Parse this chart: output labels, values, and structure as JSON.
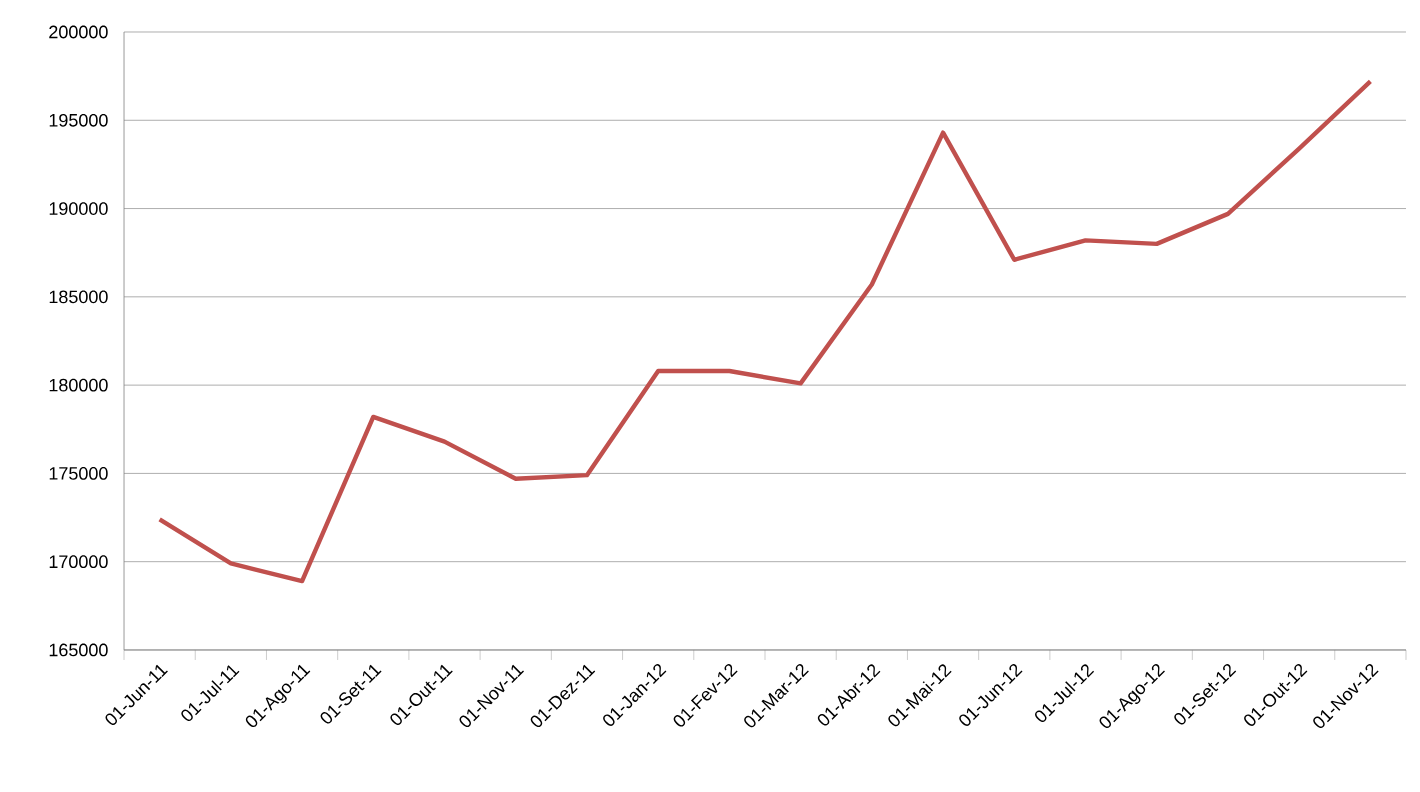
{
  "chart_data": {
    "type": "line",
    "categories": [
      "01-Jun-11",
      "01-Jul-11",
      "01-Ago-11",
      "01-Set-11",
      "01-Out-11",
      "01-Nov-11",
      "01-Dez-11",
      "01-Jan-12",
      "01-Fev-12",
      "01-Mar-12",
      "01-Abr-12",
      "01-Mai-12",
      "01-Jun-12",
      "01-Jul-12",
      "01-Ago-12",
      "01-Set-12",
      "01-Out-12",
      "01-Nov-12"
    ],
    "series": [
      {
        "color": "#c0504d",
        "values": [
          172400,
          169900,
          168900,
          178200,
          176800,
          174700,
          174900,
          180800,
          180800,
          180100,
          185700,
          194300,
          187100,
          188200,
          188000,
          189700,
          193400,
          197200
        ]
      }
    ],
    "ylim": [
      165000,
      200000
    ],
    "yticks": [
      165000,
      170000,
      175000,
      180000,
      185000,
      190000,
      195000,
      200000
    ],
    "grid": "y",
    "marker": "none",
    "line_style": "solid"
  }
}
